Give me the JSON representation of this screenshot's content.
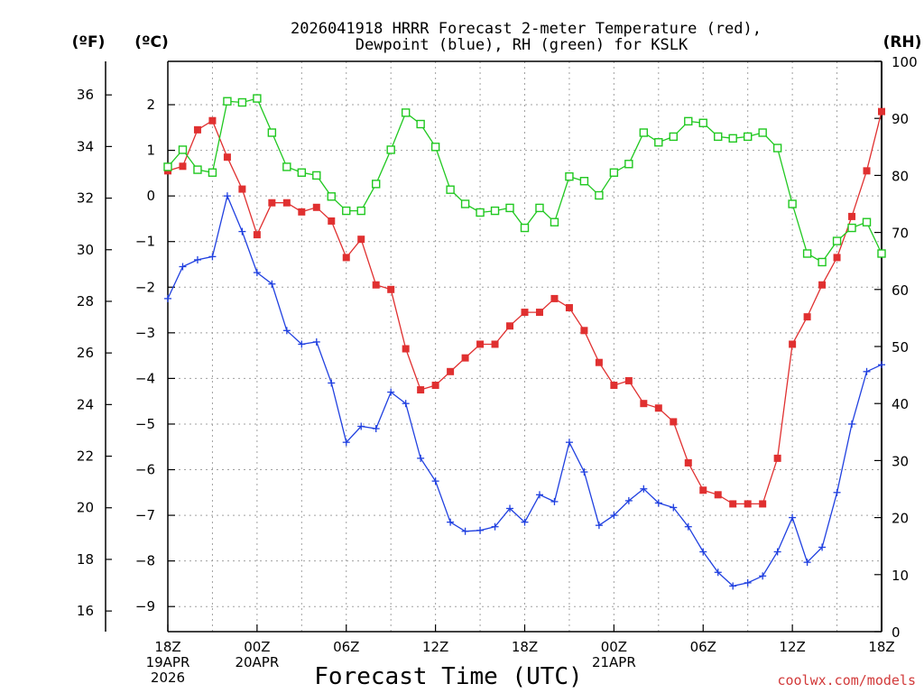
{
  "title_line1": "2026041918 HRRR Forecast 2-meter Temperature (red),",
  "title_line2": "Dewpoint (blue), RH (green) for KSLK",
  "units": {
    "left_f": "(ºF)",
    "left_c": "(ºC)",
    "right": "(RH)"
  },
  "x_axis_title": "Forecast Time (UTC)",
  "credit": "coolwx.com/models",
  "colors": {
    "temperature": "#e03030",
    "dewpoint": "#2040e0",
    "rh": "#20c820",
    "axis": "#000000"
  },
  "chart_data": {
    "type": "line",
    "x_hours": [
      0,
      1,
      2,
      3,
      4,
      5,
      6,
      7,
      8,
      9,
      10,
      11,
      12,
      13,
      14,
      15,
      16,
      17,
      18,
      19,
      20,
      21,
      22,
      23,
      24,
      25,
      26,
      27,
      28,
      29,
      30,
      31,
      32,
      33,
      34,
      35,
      36,
      37,
      38,
      39,
      40,
      41,
      42,
      43,
      44,
      45,
      46,
      47,
      48
    ],
    "xlim": [
      0,
      48
    ],
    "x_ticks": [
      {
        "hour": 0,
        "lines": [
          "18Z",
          "19APR",
          "2026"
        ]
      },
      {
        "hour": 6,
        "lines": [
          "00Z",
          "20APR"
        ]
      },
      {
        "hour": 12,
        "lines": [
          "06Z"
        ]
      },
      {
        "hour": 18,
        "lines": [
          "12Z"
        ]
      },
      {
        "hour": 24,
        "lines": [
          "18Z"
        ]
      },
      {
        "hour": 30,
        "lines": [
          "00Z",
          "21APR"
        ]
      },
      {
        "hour": 36,
        "lines": [
          "06Z"
        ]
      },
      {
        "hour": 42,
        "lines": [
          "12Z"
        ]
      },
      {
        "hour": 48,
        "lines": [
          "18Z"
        ]
      }
    ],
    "celsius_axis": {
      "ylim": [
        -9.55,
        2.95
      ],
      "ticks": [
        2,
        1,
        0,
        -1,
        -2,
        -3,
        -4,
        -5,
        -6,
        -7,
        -8,
        -9
      ]
    },
    "fahrenheit_axis": {
      "ylim": [
        15.2,
        37.3
      ],
      "ticks": [
        36,
        34,
        32,
        30,
        28,
        26,
        24,
        22,
        20,
        18,
        16
      ]
    },
    "rh_axis": {
      "ylim": [
        0,
        100
      ],
      "ticks": [
        100,
        90,
        80,
        70,
        60,
        50,
        40,
        30,
        20,
        10,
        0
      ]
    },
    "series": [
      {
        "name": "Temperature",
        "units": "C",
        "color": "#e03030",
        "marker": "filled-square",
        "values": [
          0.55,
          0.65,
          1.45,
          1.65,
          0.85,
          0.15,
          -0.85,
          -0.15,
          -0.15,
          -0.35,
          -0.25,
          -0.55,
          -1.35,
          -0.95,
          -1.95,
          -2.05,
          -3.35,
          -4.25,
          -4.15,
          -3.85,
          -3.55,
          -3.25,
          -3.25,
          -2.85,
          -2.55,
          -2.55,
          -2.25,
          -2.45,
          -2.95,
          -3.65,
          -4.15,
          -4.05,
          -4.55,
          -4.65,
          -4.95,
          -5.85,
          -6.45,
          -6.55,
          -6.75,
          -6.75,
          -6.75,
          -5.75,
          -3.25,
          -2.65,
          -1.95,
          -1.35,
          -0.45,
          0.55,
          1.85
        ]
      },
      {
        "name": "Dewpoint",
        "units": "C",
        "color": "#2040e0",
        "marker": "plus",
        "values": [
          -2.25,
          -1.55,
          -1.4,
          -1.33,
          0.0,
          -0.78,
          -1.68,
          -1.93,
          -2.95,
          -3.25,
          -3.2,
          -4.1,
          -5.4,
          -5.05,
          -5.1,
          -4.3,
          -4.55,
          -5.75,
          -6.25,
          -7.15,
          -7.35,
          -7.33,
          -7.25,
          -6.85,
          -7.15,
          -6.55,
          -6.7,
          -5.4,
          -6.05,
          -7.22,
          -7.0,
          -6.68,
          -6.42,
          -6.73,
          -6.83,
          -7.25,
          -7.8,
          -8.25,
          -8.55,
          -8.48,
          -8.33,
          -7.8,
          -7.05,
          -8.03,
          -7.7,
          -6.5,
          -5.0,
          -3.85,
          -3.7
        ]
      },
      {
        "name": "RH",
        "units": "%",
        "color": "#20c820",
        "marker": "open-square",
        "values": [
          81.5,
          84.5,
          81,
          80.5,
          93,
          92.8,
          93.5,
          87.5,
          81.5,
          80.5,
          80,
          76.3,
          73.8,
          73.8,
          78.5,
          84.5,
          91,
          89,
          85,
          77.5,
          75,
          73.5,
          73.8,
          74.3,
          70.8,
          74.3,
          71.8,
          79.8,
          79,
          76.5,
          80.5,
          82,
          87.5,
          85.8,
          86.8,
          89.5,
          89.2,
          86.8,
          86.5,
          86.8,
          87.5,
          84.8,
          75,
          66.3,
          64.8,
          68.5,
          70.8,
          71.8,
          66.3
        ]
      }
    ]
  }
}
